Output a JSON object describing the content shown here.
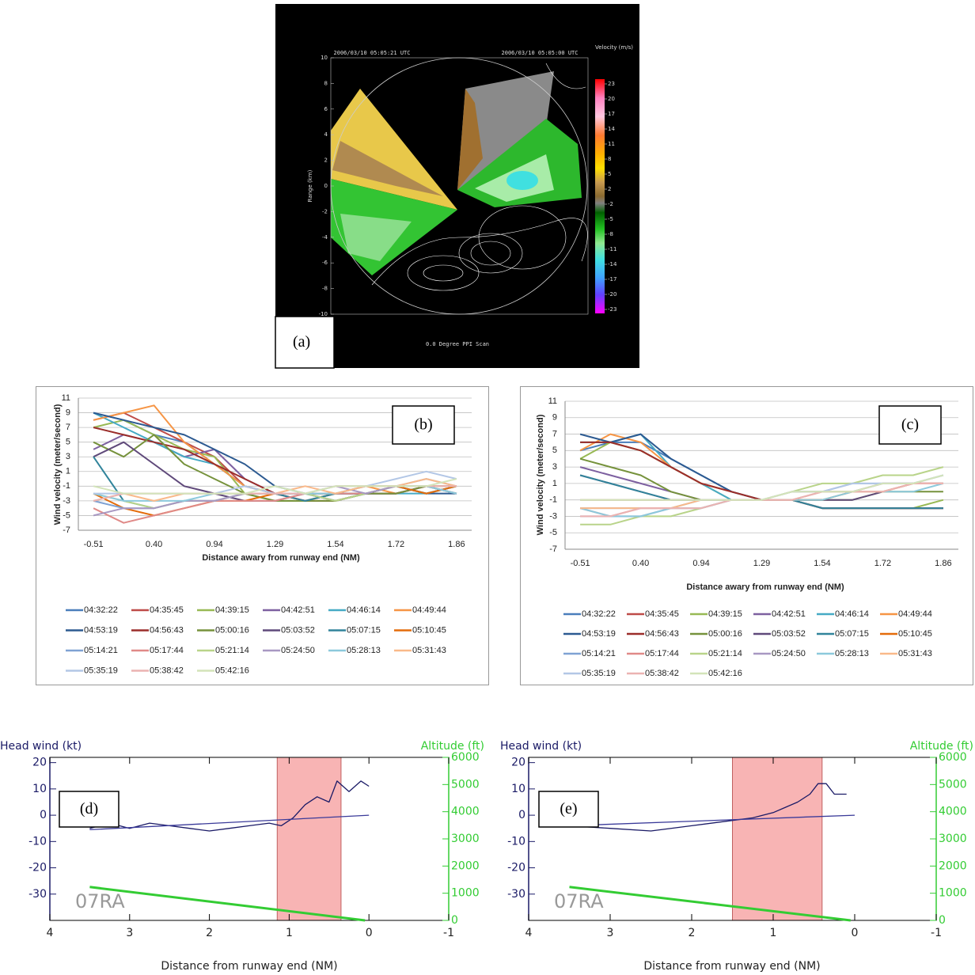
{
  "chart_data": [
    {
      "type": "ppi",
      "panel_label": "(a)",
      "title": "0.0 Degree PPI Scan",
      "timestamps": [
        "2006/03/10 05:05:21 UTC",
        "2006/03/10 05:05:00 UTC"
      ],
      "y_label": "Range (km)",
      "ylim": [
        -10,
        10
      ],
      "yticks": [
        10,
        8,
        6,
        4,
        2,
        0,
        -2,
        -4,
        -6,
        -8,
        -10
      ],
      "colorbar": {
        "title": "Velocity (m/s)",
        "ticks": [
          23,
          20,
          17,
          14,
          11,
          8,
          5,
          2,
          -2,
          -5,
          -8,
          -11,
          -14,
          -17,
          -20,
          -23
        ]
      }
    },
    {
      "type": "line",
      "panel_label": "(b)",
      "x_label": "Distance awary from runway end (NM)",
      "y_label": "Wind velocity (meter/second)",
      "categories": [
        "-0.51",
        null,
        "0.40",
        null,
        "0.94",
        null,
        "1.29",
        null,
        "1.54",
        null,
        "1.72",
        null,
        "1.86"
      ],
      "ylim": [
        -7,
        11
      ],
      "yticks": [
        -7,
        -5,
        -3,
        -1,
        1,
        3,
        5,
        7,
        9,
        11
      ],
      "grid": true,
      "series": [
        {
          "name": "04:32:22",
          "color": "#4A7EBB",
          "values": [
            9,
            8,
            6,
            5,
            2,
            -1,
            -2,
            -2,
            -3,
            -2,
            -2,
            -1,
            -2
          ]
        },
        {
          "name": "04:35:45",
          "color": "#BE4B48",
          "values": [
            8,
            9,
            7,
            5,
            3,
            -1,
            -2,
            -3,
            -2,
            -2,
            -2,
            -1,
            -2
          ]
        },
        {
          "name": "04:39:15",
          "color": "#98B954",
          "values": [
            7,
            8,
            6,
            4,
            3,
            -2,
            -3,
            -3,
            -2,
            -2,
            -1,
            -2,
            -1
          ]
        },
        {
          "name": "04:42:51",
          "color": "#7D60A0",
          "values": [
            4,
            6,
            5,
            3,
            4,
            0,
            -2,
            -3,
            -2,
            -2,
            -2,
            -1,
            -2
          ]
        },
        {
          "name": "04:46:14",
          "color": "#46AAC5",
          "values": [
            9,
            7,
            5,
            3,
            2,
            -1,
            -2,
            -2,
            -2,
            -2,
            -2,
            -2,
            -1
          ]
        },
        {
          "name": "04:49:44",
          "color": "#F69545",
          "values": [
            8,
            9,
            10,
            5,
            2,
            -1,
            -2,
            -3,
            -2,
            -1,
            -2,
            -1,
            -2
          ]
        },
        {
          "name": "04:53:19",
          "color": "#2C5A91",
          "values": [
            9,
            8,
            7,
            6,
            4,
            2,
            -1,
            -2,
            -3,
            -2,
            -1,
            -2,
            -2
          ]
        },
        {
          "name": "04:56:43",
          "color": "#9B2D2A",
          "values": [
            7,
            6,
            5,
            4,
            2,
            0,
            -2,
            -3,
            -3,
            -2,
            -2,
            -1,
            -1
          ]
        },
        {
          "name": "05:00:16",
          "color": "#76923C",
          "values": [
            5,
            3,
            6,
            2,
            0,
            -2,
            -3,
            -3,
            -3,
            -2,
            -2,
            -1,
            -2
          ]
        },
        {
          "name": "05:03:52",
          "color": "#5F497A",
          "values": [
            3,
            5,
            2,
            -1,
            -2,
            -3,
            -3,
            -2,
            -2,
            -2,
            -1,
            -2,
            -1
          ]
        },
        {
          "name": "05:07:15",
          "color": "#31849B",
          "values": [
            3,
            -3,
            -4,
            -3,
            -3,
            -2,
            -2,
            -3,
            -2,
            -2,
            -1,
            -2,
            -1
          ]
        },
        {
          "name": "05:10:45",
          "color": "#E46C0A",
          "values": [
            -2,
            -4,
            -5,
            -4,
            -3,
            -3,
            -2,
            -2,
            -2,
            -1,
            -1,
            -2,
            -1
          ]
        },
        {
          "name": "05:14:21",
          "color": "#7FA2D3",
          "values": [
            -3,
            -4,
            -4,
            -3,
            -3,
            -2,
            -2,
            -2,
            -2,
            -1,
            -1,
            0,
            -1
          ]
        },
        {
          "name": "05:17:44",
          "color": "#E08A88",
          "values": [
            -4,
            -6,
            -5,
            -4,
            -3,
            -3,
            -3,
            -2,
            -2,
            -2,
            -1,
            -1,
            -1
          ]
        },
        {
          "name": "05:21:14",
          "color": "#B9D48A",
          "values": [
            -2,
            -3,
            -4,
            -3,
            -3,
            -2,
            -2,
            -2,
            -3,
            -2,
            -1,
            -1,
            -1
          ]
        },
        {
          "name": "05:24:50",
          "color": "#A898C2",
          "values": [
            -5,
            -4,
            -4,
            -3,
            -3,
            -2,
            -2,
            -2,
            -1,
            -2,
            -1,
            -1,
            -2
          ]
        },
        {
          "name": "05:28:13",
          "color": "#8CC9DC",
          "values": [
            -2,
            -3,
            -3,
            -3,
            -2,
            -2,
            -2,
            -2,
            -2,
            -1,
            -1,
            -1,
            -2
          ]
        },
        {
          "name": "05:31:43",
          "color": "#F9B98A",
          "values": [
            -3,
            -2,
            -3,
            -2,
            -2,
            -2,
            -2,
            -1,
            -2,
            -1,
            -1,
            0,
            -1
          ]
        },
        {
          "name": "05:35:19",
          "color": "#B3C7E6",
          "values": [
            -2,
            -2,
            -2,
            -2,
            -2,
            -1,
            -2,
            -2,
            -1,
            -1,
            0,
            1,
            0
          ]
        },
        {
          "name": "05:38:42",
          "color": "#EBB3B2",
          "values": [
            -3,
            -2,
            -2,
            -2,
            -2,
            -2,
            -2,
            -2,
            -1,
            -1,
            -1,
            -1,
            -1
          ]
        },
        {
          "name": "05:42:16",
          "color": "#D3E4B9",
          "values": [
            -1,
            -2,
            -2,
            -2,
            -2,
            -2,
            -1,
            -2,
            -1,
            -1,
            -1,
            -1,
            0
          ]
        }
      ]
    },
    {
      "type": "line",
      "panel_label": "(c)",
      "x_label": "Distance awary from runway end (NM)",
      "y_label": "Wind velocity (meter/second)",
      "categories": [
        "-0.51",
        null,
        "0.40",
        null,
        "0.94",
        null,
        "1.29",
        null,
        "1.54",
        null,
        "1.72",
        null,
        "1.86"
      ],
      "ylim": [
        -7,
        11
      ],
      "yticks": [
        -7,
        -5,
        -3,
        -1,
        1,
        3,
        5,
        7,
        9,
        11
      ],
      "grid": true,
      "series": [
        {
          "name": "04:32:22",
          "color": "#4A7EBB",
          "values": [
            5,
            6,
            6,
            4,
            2,
            0,
            -1,
            -1,
            -2,
            -2,
            -2,
            -2,
            -2
          ]
        },
        {
          "name": "04:35:45",
          "color": "#BE4B48",
          "values": [
            6,
            6,
            5,
            3,
            1,
            0,
            -1,
            -1,
            -2,
            -2,
            -2,
            -2,
            -2
          ]
        },
        {
          "name": "04:39:15",
          "color": "#98B954",
          "values": [
            4,
            6,
            5,
            3,
            1,
            -1,
            -1,
            -1,
            -2,
            -2,
            -2,
            -2,
            -1
          ]
        },
        {
          "name": "04:42:51",
          "color": "#7D60A0",
          "values": [
            3,
            2,
            1,
            0,
            -1,
            -1,
            -1,
            -1,
            -2,
            -2,
            -2,
            -2,
            -2
          ]
        },
        {
          "name": "04:46:14",
          "color": "#46AAC5",
          "values": [
            6,
            6,
            7,
            3,
            1,
            -1,
            -1,
            -1,
            -2,
            -2,
            -2,
            -2,
            -2
          ]
        },
        {
          "name": "04:49:44",
          "color": "#F69545",
          "values": [
            5,
            7,
            6,
            3,
            1,
            0,
            -1,
            -1,
            -2,
            -2,
            -2,
            -2,
            -2
          ]
        },
        {
          "name": "04:53:19",
          "color": "#2C5A91",
          "values": [
            7,
            6,
            7,
            4,
            2,
            0,
            -1,
            -1,
            -2,
            -2,
            -2,
            -2,
            -2
          ]
        },
        {
          "name": "04:56:43",
          "color": "#9B2D2A",
          "values": [
            6,
            6,
            5,
            3,
            1,
            0,
            -1,
            -1,
            -2,
            -2,
            -2,
            -2,
            -2
          ]
        },
        {
          "name": "05:00:16",
          "color": "#76923C",
          "values": [
            4,
            3,
            2,
            0,
            -1,
            -1,
            -1,
            -1,
            -1,
            -1,
            0,
            0,
            0
          ]
        },
        {
          "name": "05:03:52",
          "color": "#5F497A",
          "values": [
            2,
            1,
            0,
            -1,
            -1,
            -1,
            -1,
            -1,
            -1,
            -1,
            0,
            1,
            1
          ]
        },
        {
          "name": "05:07:15",
          "color": "#31849B",
          "values": [
            2,
            1,
            0,
            -1,
            -1,
            -1,
            -1,
            -1,
            -2,
            -2,
            -2,
            -2,
            -2
          ]
        },
        {
          "name": "05:10:45",
          "color": "#E46C0A",
          "values": [
            -1,
            -1,
            -1,
            -1,
            -1,
            -1,
            -1,
            -1,
            -1,
            0,
            0,
            1,
            1
          ]
        },
        {
          "name": "05:14:21",
          "color": "#7FA2D3",
          "values": [
            -2,
            -2,
            -2,
            -2,
            -1,
            -1,
            -1,
            0,
            0,
            1,
            1,
            1,
            2
          ]
        },
        {
          "name": "05:17:44",
          "color": "#E08A88",
          "values": [
            -2,
            -3,
            -2,
            -2,
            -2,
            -1,
            -1,
            0,
            0,
            0,
            1,
            1,
            1
          ]
        },
        {
          "name": "05:21:14",
          "color": "#B9D48A",
          "values": [
            -4,
            -4,
            -3,
            -3,
            -2,
            -1,
            -1,
            0,
            1,
            1,
            2,
            2,
            3
          ]
        },
        {
          "name": "05:24:50",
          "color": "#A898C2",
          "values": [
            -3,
            -3,
            -3,
            -2,
            -2,
            -1,
            -1,
            -1,
            0,
            0,
            1,
            1,
            1
          ]
        },
        {
          "name": "05:28:13",
          "color": "#8CC9DC",
          "values": [
            -2,
            -3,
            -3,
            -2,
            -2,
            -1,
            -1,
            -1,
            -1,
            0,
            0,
            0,
            1
          ]
        },
        {
          "name": "05:31:43",
          "color": "#F9B98A",
          "values": [
            -2,
            -2,
            -2,
            -2,
            -1,
            -1,
            -1,
            -1,
            0,
            0,
            0,
            1,
            1
          ]
        },
        {
          "name": "05:35:19",
          "color": "#B3C7E6",
          "values": [
            -1,
            -1,
            -1,
            -1,
            -1,
            -1,
            -1,
            0,
            0,
            1,
            1,
            1,
            2
          ]
        },
        {
          "name": "05:38:42",
          "color": "#EBB3B2",
          "values": [
            -3,
            -3,
            -2,
            -2,
            -2,
            -1,
            -1,
            -1,
            0,
            0,
            0,
            1,
            1
          ]
        },
        {
          "name": "05:42:16",
          "color": "#D3E4B9",
          "values": [
            -1,
            -1,
            -1,
            -1,
            -1,
            -1,
            -1,
            0,
            0,
            0,
            1,
            1,
            2
          ]
        }
      ]
    },
    {
      "type": "line",
      "panel_label": "(d)",
      "annotation": "07RA",
      "x_label": "Distance from runway end (NM)",
      "y_label": "Head wind (kt)",
      "y2_label": "Altitude (ft)",
      "xlim": [
        4,
        -1
      ],
      "xticks": [
        4,
        3,
        2,
        1,
        0,
        -1
      ],
      "ylim": [
        -40,
        22
      ],
      "yticks": [
        20,
        10,
        0,
        -10,
        -20,
        -30
      ],
      "y2lim": [
        0,
        6000
      ],
      "y2ticks": [
        0,
        1000,
        2000,
        3000,
        4000,
        5000,
        6000
      ],
      "shaded_region": [
        1.15,
        0.35
      ],
      "series": [
        {
          "color": "#1a1a66",
          "x": [
            3.5,
            3.25,
            3.0,
            2.75,
            2.5,
            2.25,
            2.0,
            1.75,
            1.5,
            1.25,
            1.1,
            0.95,
            0.8,
            0.65,
            0.5,
            0.4,
            0.25,
            0.1,
            0.0
          ],
          "values": [
            -5,
            -3,
            -5,
            -3,
            -4,
            -5,
            -6,
            -5,
            -4,
            -3,
            -4,
            -1,
            4,
            7,
            5,
            13,
            9,
            13,
            11
          ]
        },
        {
          "color": "#3a3a99",
          "x": [
            3.5,
            0.0
          ],
          "values": [
            -5.5,
            0
          ]
        },
        {
          "color": "#33cc33",
          "axis": "y2",
          "x": [
            3.5,
            0.05
          ],
          "values": [
            1230,
            0
          ]
        }
      ]
    },
    {
      "type": "line",
      "panel_label": "(e)",
      "annotation": "07RA",
      "x_label": "Distance from runway end (NM)",
      "y_label": "Head wind (kt)",
      "y2_label": "Altitude (ft)",
      "xlim": [
        4,
        -1
      ],
      "xticks": [
        4,
        3,
        2,
        1,
        0,
        -1
      ],
      "ylim": [
        -40,
        22
      ],
      "yticks": [
        20,
        10,
        0,
        -10,
        -20,
        -30
      ],
      "y2lim": [
        0,
        6000
      ],
      "y2ticks": [
        0,
        1000,
        2000,
        3000,
        4000,
        5000,
        6000
      ],
      "shaded_region": [
        1.5,
        0.4
      ],
      "series": [
        {
          "color": "#1a1a66",
          "x": [
            3.5,
            3.0,
            2.5,
            2.0,
            1.5,
            1.25,
            1.0,
            0.85,
            0.7,
            0.55,
            0.45,
            0.35,
            0.25,
            0.1
          ],
          "values": [
            -4,
            -5,
            -6,
            -4,
            -2,
            -1,
            1,
            3,
            5,
            8,
            12,
            12,
            8,
            8
          ]
        },
        {
          "color": "#3a3a99",
          "x": [
            3.5,
            0.0
          ],
          "values": [
            -4,
            0
          ]
        },
        {
          "color": "#33cc33",
          "axis": "y2",
          "x": [
            3.5,
            0.05
          ],
          "values": [
            1230,
            0
          ]
        }
      ]
    }
  ]
}
